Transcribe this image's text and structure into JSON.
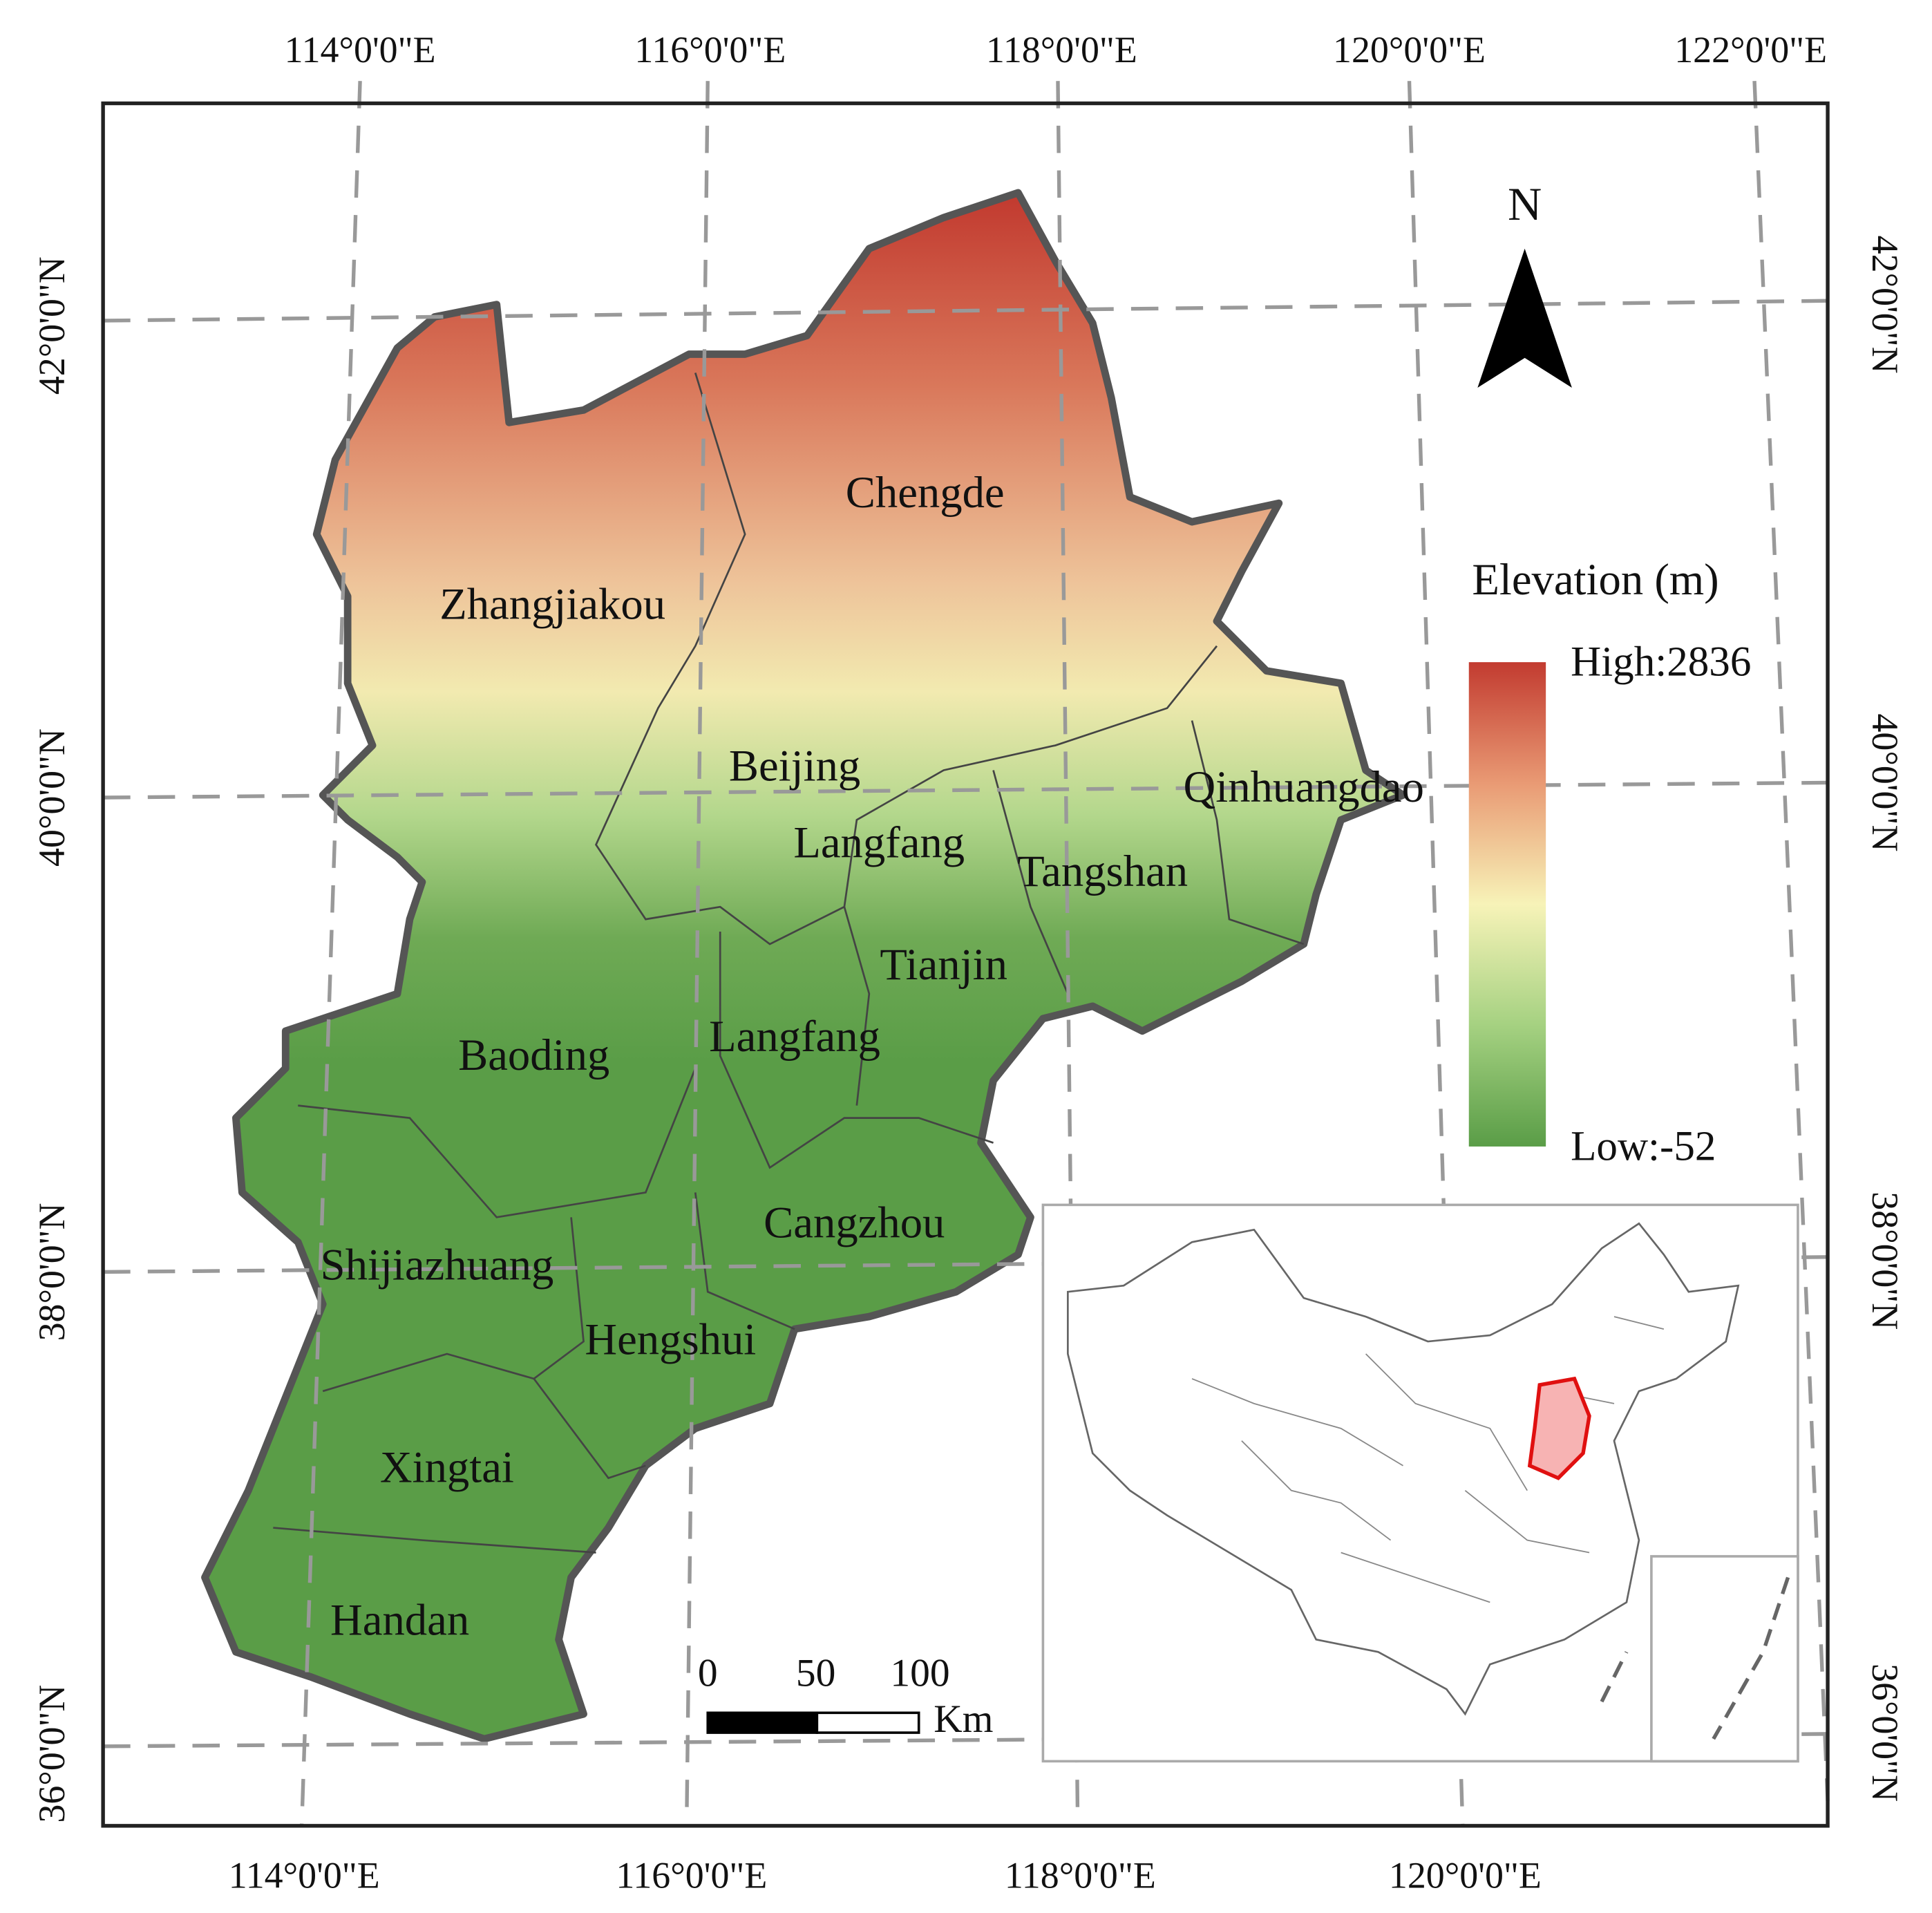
{
  "map": {
    "top_labels": [
      "114°0'0\"E",
      "116°0'0\"E",
      "118°0'0\"E",
      "120°0'0\"E",
      "122°0'0\"E"
    ],
    "bottom_labels": [
      "114°0'0\"E",
      "116°0'0\"E",
      "118°0'0\"E",
      "120°0'0\"E"
    ],
    "left_labels": [
      "42°0'0\"N",
      "40°0'0\"N",
      "38°0'0\"N",
      "36°0'0\"N"
    ],
    "right_labels": [
      "42°0'0\"N",
      "40°0'0\"N",
      "38°0'0\"N",
      "36°0'0\"N"
    ],
    "cities": [
      "Zhangjiakou",
      "Chengde",
      "Beijing",
      "Qinhuangdao",
      "Langfang",
      "Tangshan",
      "Tianjin",
      "Langfang",
      "Baoding",
      "Cangzhou",
      "Shijiazhuang",
      "Hengshui",
      "Xingtai",
      "Handan"
    ],
    "north": "N",
    "legend": {
      "title": "Elevation (m)",
      "high": "High:2836",
      "low": "Low:-52"
    },
    "scale": {
      "ticks": [
        "0",
        "50",
        "100"
      ],
      "unit": "Km"
    }
  }
}
